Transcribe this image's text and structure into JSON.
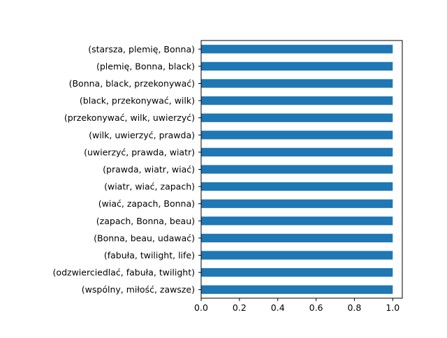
{
  "chart_data": {
    "type": "bar",
    "orientation": "horizontal",
    "categories": [
      "(starsza, plemię, Bonna)",
      "(plemię, Bonna, black)",
      "(Bonna, black, przekonywać)",
      "(black, przekonywać, wilk)",
      "(przekonywać, wilk, uwierzyć)",
      "(wilk, uwierzyć, prawda)",
      "(uwierzyć, prawda, wiatr)",
      "(prawda, wiatr, wiać)",
      "(wiatr, wiać, zapach)",
      "(wiać, zapach, Bonna)",
      "(zapach, Bonna, beau)",
      "(Bonna, beau, udawać)",
      "(fabuła, twilight, life)",
      "(odzwierciedlać, fabuła, twilight)",
      "(wspólny, miłość, zawsze)"
    ],
    "values": [
      1,
      1,
      1,
      1,
      1,
      1,
      1,
      1,
      1,
      1,
      1,
      1,
      1,
      1,
      1
    ],
    "title": "",
    "xlabel": "",
    "ylabel": "",
    "xlim": [
      0,
      1.05
    ],
    "xticks": [
      "0.0",
      "0.2",
      "0.4",
      "0.6",
      "0.8",
      "1.0"
    ],
    "grid": false,
    "legend": "none",
    "bar_color": "#1f77b4"
  }
}
